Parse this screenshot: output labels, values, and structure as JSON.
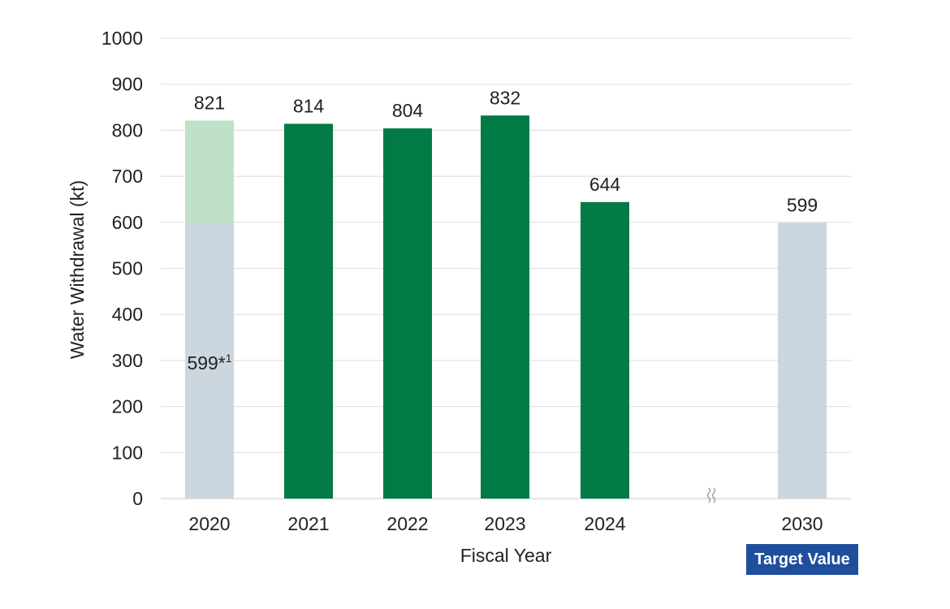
{
  "chart_data": {
    "type": "bar",
    "stacked": true,
    "categories": [
      "2020",
      "2021",
      "2022",
      "2023",
      "2024",
      "2030"
    ],
    "series": [
      {
        "values": [
          599,
          0,
          0,
          0,
          0,
          599
        ],
        "color": "#ccd6de"
      },
      {
        "values": [
          222,
          0,
          0,
          0,
          0,
          0
        ],
        "color": "#bfe2c6"
      },
      {
        "values": [
          0,
          814,
          804,
          832,
          644,
          0
        ],
        "color": "#017a46"
      }
    ],
    "totals": [
      821,
      814,
      804,
      832,
      644,
      599
    ],
    "data_labels": [
      "821",
      "814",
      "804",
      "832",
      "644",
      "599"
    ],
    "inner_label": {
      "category": "2020",
      "text": "599*1"
    },
    "axis_break_between": [
      "2024",
      "2030"
    ],
    "xlabel": "Fiscal Year",
    "ylabel": "Water Withdrawal (kt)",
    "ylim": [
      0,
      1000
    ],
    "yticks": [
      0,
      100,
      200,
      300,
      400,
      500,
      600,
      700,
      800,
      900,
      1000
    ],
    "grid": true,
    "badge": "Target Value",
    "badge_color": "#1f4e9c"
  }
}
